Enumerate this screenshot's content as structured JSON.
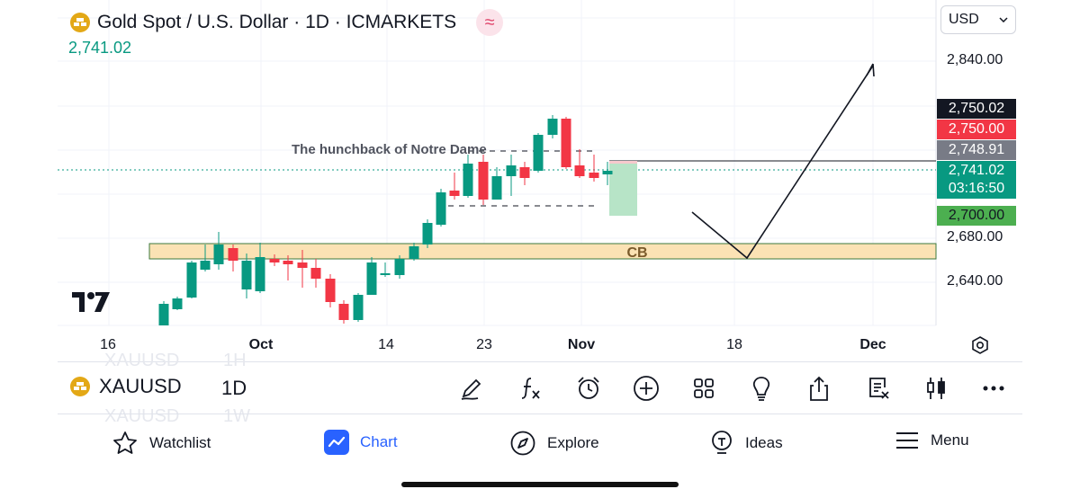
{
  "header": {
    "title": "Gold Spot / U.S. Dollar · 1D · ICMARKETS",
    "last_price": "2,741.02",
    "currency": "USD"
  },
  "price_axis": {
    "ticks": [
      "2,840.00",
      "2,680.00",
      "2,640.00"
    ]
  },
  "price_tags": {
    "tag_1": "2,750.02",
    "tag_2": "2,750.00",
    "tag_3": "2,748.91",
    "current": "2,741.02",
    "countdown": "03:16:50",
    "target": "2,700.00"
  },
  "time_axis": {
    "labels": [
      "16",
      "Oct",
      "14",
      "23",
      "Nov",
      "18",
      "Dec"
    ]
  },
  "annotations": {
    "hunchback": "The hunchback of Notre Dame",
    "zone_label": "CB"
  },
  "colors": {
    "up": "#089981",
    "down": "#f23645",
    "zone_fill": "#fbe2b4",
    "zone_border": "#3e7a3e",
    "target_tag": "#4caf50",
    "current_tag": "#089981",
    "accent": "#2962ff"
  },
  "symbol_bar": {
    "symbol": "XAUUSD",
    "interval": "1D",
    "ghost_top_symbol": "XAUUSD",
    "ghost_top_interval": "1H",
    "ghost_bottom_symbol": "XAUUSD",
    "ghost_bottom_interval": "1W"
  },
  "toolbar": {
    "icons": [
      "drawing-pen-icon",
      "function-icon",
      "alarm-clock-icon",
      "add-circle-icon",
      "grid-icon",
      "lightbulb-icon",
      "share-icon",
      "notes-icon",
      "candles-icon",
      "more-icon"
    ]
  },
  "bottom_nav": {
    "watchlist": "Watchlist",
    "chart": "Chart",
    "explore": "Explore",
    "ideas": "Ideas",
    "menu": "Menu"
  }
}
